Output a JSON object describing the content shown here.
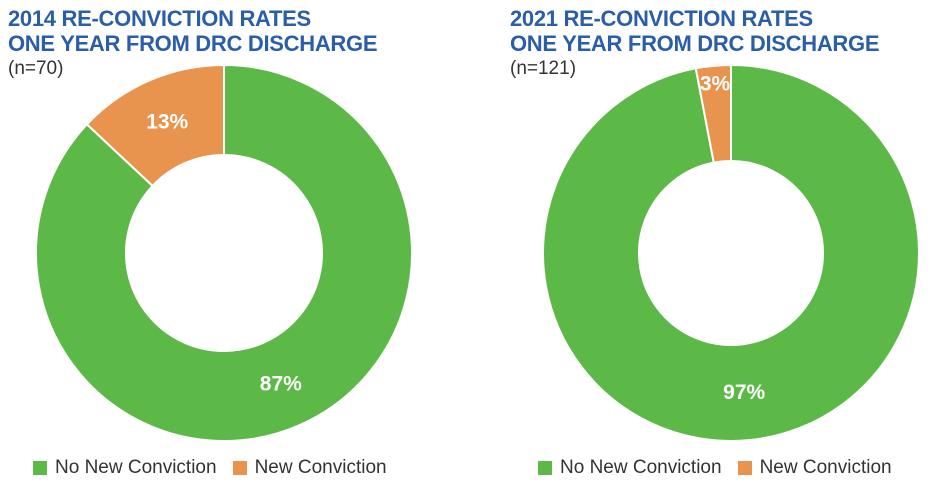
{
  "chart_data": [
    {
      "type": "pie",
      "title_lines": [
        "2014 RE-CONVICTION RATES",
        "ONE YEAR FROM DRC DISCHARGE"
      ],
      "subtitle": "(n=70)",
      "categories": [
        "No New Conviction",
        "New Conviction"
      ],
      "values": [
        87,
        13
      ],
      "labels": [
        "87%",
        "13%"
      ],
      "colors": [
        "#5cb947",
        "#e8944e"
      ],
      "legend": "bottom"
    },
    {
      "type": "pie",
      "title_lines": [
        "2021 RE-CONVICTION RATES",
        "ONE YEAR FROM DRC DISCHARGE"
      ],
      "subtitle": "(n=121)",
      "categories": [
        "No New Conviction",
        "New Conviction"
      ],
      "values": [
        97,
        3
      ],
      "labels": [
        "97%",
        "3%"
      ],
      "colors": [
        "#5cb947",
        "#e8944e"
      ],
      "legend": "bottom"
    }
  ]
}
